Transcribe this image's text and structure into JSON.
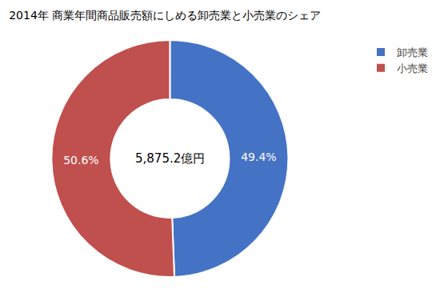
{
  "chart_data": {
    "type": "pie",
    "title": "2014年 商業年間商品販売額にしめる卸売業と小売業のシェア",
    "annotations": [
      "5,875.2億円"
    ],
    "categories": [
      "卸売業",
      "小売業"
    ],
    "values": [
      49.4,
      50.6
    ],
    "value_labels": [
      "49.4%",
      "50.6%"
    ],
    "colors": [
      "#4472C4",
      "#C0504D"
    ],
    "data_labels": true,
    "legend": "upper right"
  }
}
